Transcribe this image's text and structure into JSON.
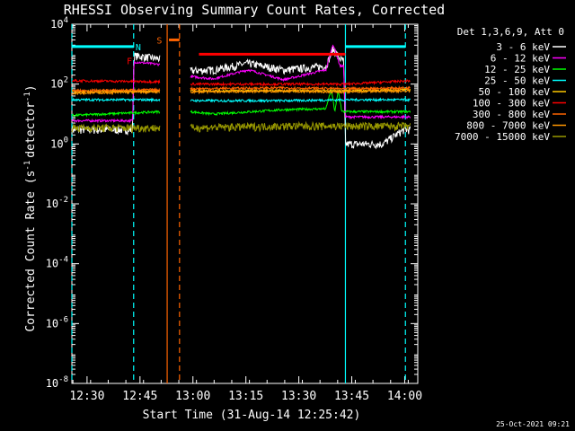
{
  "chart_data": {
    "type": "line",
    "title": "RHESSI Observing Summary Count Rates, Corrected",
    "xlabel": "Start Time (31-Aug-14 12:25:42)",
    "ylabel_main": "Corrected Count Rate (s",
    "ylabel_unit": "detector",
    "ylabel_sup": "-1",
    "ylabel_close": ")",
    "x_unit": "minutes after 12:25:42",
    "xlim": [
      0,
      98
    ],
    "ylim": [
      1e-08,
      10000
    ],
    "ylog": true,
    "x_ticks": [
      {
        "x": 4.3,
        "label": "12:30"
      },
      {
        "x": 19.3,
        "label": "12:45"
      },
      {
        "x": 34.3,
        "label": "13:00"
      },
      {
        "x": 49.3,
        "label": "13:15"
      },
      {
        "x": 64.3,
        "label": "13:30"
      },
      {
        "x": 79.3,
        "label": "13:45"
      },
      {
        "x": 94.3,
        "label": "14:00"
      }
    ],
    "y_ticks": [
      {
        "v": 1e-08,
        "base": "10",
        "exp": "-8"
      },
      {
        "v": 1e-06,
        "base": "10",
        "exp": "-6"
      },
      {
        "v": 0.0001,
        "base": "10",
        "exp": "-4"
      },
      {
        "v": 0.01,
        "base": "10",
        "exp": "-2"
      },
      {
        "v": 1,
        "base": "10",
        "exp": "0"
      },
      {
        "v": 100,
        "base": "10",
        "exp": "2"
      },
      {
        "v": 10000,
        "base": "10",
        "exp": "4"
      }
    ],
    "legend_header": "Det 1,3,6,9, Att 0",
    "legend_placement": "right",
    "series": [
      {
        "name": "3 - 6 keV",
        "color": "#ffffff",
        "values": [
          [
            0,
            3
          ],
          [
            17.2,
            3
          ],
          [
            17.6,
            900
          ],
          [
            25,
            700
          ],
          [
            33.5,
            280
          ],
          [
            40,
            300
          ],
          [
            50,
            500
          ],
          [
            60,
            300
          ],
          [
            72,
            400
          ],
          [
            74,
            1500
          ],
          [
            76,
            700
          ],
          [
            77,
            600
          ],
          [
            77.5,
            1
          ],
          [
            88,
            1
          ],
          [
            94,
            3
          ],
          [
            96,
            3
          ]
        ]
      },
      {
        "name": "6 - 12 keV",
        "color": "#ff00ff",
        "values": [
          [
            0,
            6
          ],
          [
            17.2,
            6
          ],
          [
            17.6,
            550
          ],
          [
            25,
            450
          ],
          [
            33.5,
            180
          ],
          [
            40,
            150
          ],
          [
            50,
            300
          ],
          [
            60,
            140
          ],
          [
            72,
            300
          ],
          [
            74,
            2200
          ],
          [
            76,
            400
          ],
          [
            77,
            400
          ],
          [
            77.5,
            8
          ],
          [
            94,
            8
          ],
          [
            96,
            8
          ]
        ]
      },
      {
        "name": "12 - 25 keV",
        "color": "#00ff00",
        "values": [
          [
            0,
            9
          ],
          [
            25,
            12
          ],
          [
            33.5,
            12
          ],
          [
            40,
            10
          ],
          [
            60,
            14
          ],
          [
            72,
            15
          ],
          [
            73.5,
            70
          ],
          [
            74.5,
            12
          ],
          [
            75.5,
            60
          ],
          [
            76.5,
            12
          ],
          [
            77.5,
            12
          ],
          [
            96,
            12
          ]
        ]
      },
      {
        "name": "25 - 50 keV",
        "color": "#00ffff",
        "values": [
          [
            0,
            30
          ],
          [
            25,
            30
          ],
          [
            33.5,
            28
          ],
          [
            60,
            28
          ],
          [
            77.5,
            30
          ],
          [
            96,
            30
          ]
        ]
      },
      {
        "name": "50 - 100 keV",
        "color": "#ffc800",
        "values": [
          [
            0,
            55
          ],
          [
            25,
            60
          ],
          [
            33.5,
            60
          ],
          [
            60,
            60
          ],
          [
            77.5,
            60
          ],
          [
            96,
            65
          ]
        ]
      },
      {
        "name": "100 - 300 keV",
        "color": "#ff0000",
        "values": [
          [
            0,
            130
          ],
          [
            25,
            120
          ],
          [
            33.5,
            100
          ],
          [
            60,
            100
          ],
          [
            77.5,
            100
          ],
          [
            96,
            130
          ]
        ]
      },
      {
        "name": "300 - 800 keV",
        "color": "#ff6400",
        "values": [
          [
            0,
            60
          ],
          [
            25,
            65
          ],
          [
            33.5,
            70
          ],
          [
            60,
            75
          ],
          [
            77.5,
            70
          ],
          [
            96,
            75
          ]
        ]
      },
      {
        "name": "800 - 7000 keV",
        "color": "#ff9600",
        "values": [
          [
            0,
            50
          ],
          [
            25,
            55
          ],
          [
            33.5,
            55
          ],
          [
            60,
            58
          ],
          [
            77.5,
            55
          ],
          [
            96,
            60
          ]
        ]
      },
      {
        "name": "7000 - 15000 keV",
        "color": "#999900",
        "values": [
          [
            0,
            3.5
          ],
          [
            25,
            3.5
          ],
          [
            33.5,
            3.5
          ],
          [
            60,
            4
          ],
          [
            77.5,
            4
          ],
          [
            96,
            4
          ]
        ]
      }
    ],
    "gaps": [
      [
        25,
        33.5
      ]
    ],
    "annotations": [
      {
        "label": "F",
        "x": 16.3,
        "y": 600,
        "color": "#ff0000"
      },
      {
        "label": "N",
        "x": 18.8,
        "y": 1800,
        "color": "#00ffff"
      },
      {
        "label": "S",
        "x": 24.8,
        "y": 3000,
        "color": "#ff6400"
      }
    ],
    "overlay_bars": [
      {
        "x1": 0,
        "x2": 17.5,
        "y": 1800,
        "color": "#00ffff"
      },
      {
        "x1": 77.5,
        "x2": 94.5,
        "y": 1800,
        "color": "#00ffff"
      },
      {
        "x1": 27.5,
        "x2": 30.5,
        "y": 3000,
        "color": "#ff6400"
      },
      {
        "x1": 36,
        "x2": 77.5,
        "y": 1000,
        "color": "#ff0000"
      }
    ],
    "vlines": [
      {
        "x": 0,
        "style": "dash",
        "color": "#00ffff"
      },
      {
        "x": 17.5,
        "style": "dash",
        "color": "#00ffff"
      },
      {
        "x": 77.5,
        "style": "solid",
        "color": "#00ffff"
      },
      {
        "x": 94.5,
        "style": "dash",
        "color": "#00ffff"
      },
      {
        "x": 27,
        "style": "solid",
        "color": "#ff6400"
      },
      {
        "x": 30.5,
        "style": "dash",
        "color": "#ff6400"
      }
    ]
  },
  "timestamp": "25-Oct-2021 09:21"
}
